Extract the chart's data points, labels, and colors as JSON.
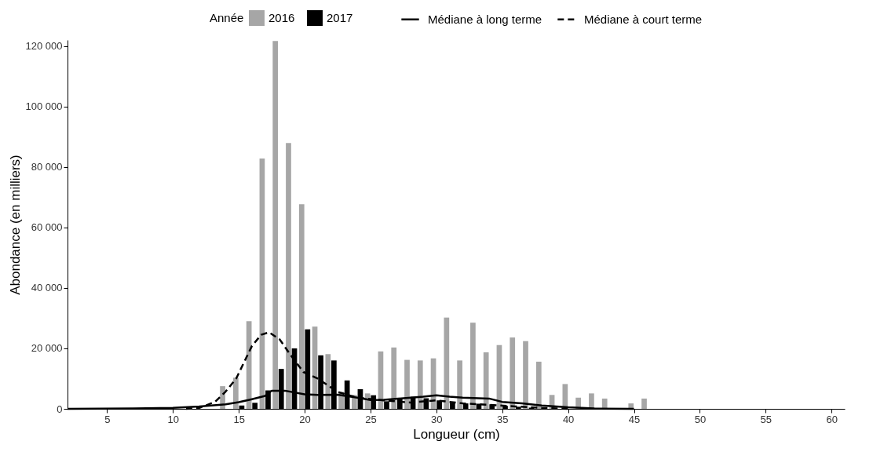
{
  "chart_data": {
    "type": "bar",
    "xlabel": "Longueur (cm)",
    "ylabel": "Abondance (en milliers)",
    "legend_title": "Année",
    "legend": "top",
    "grid": false,
    "xlim": [
      2,
      61
    ],
    "xticks": [
      5,
      10,
      15,
      20,
      25,
      30,
      35,
      40,
      45,
      50,
      55,
      60
    ],
    "ylim": [
      0,
      122000
    ],
    "yticks": [
      {
        "value": 0,
        "label": "0"
      },
      {
        "value": 20000,
        "label": "20 000"
      },
      {
        "value": 40000,
        "label": "40 000"
      },
      {
        "value": 60000,
        "label": "60 000"
      },
      {
        "value": 80000,
        "label": "80 000"
      },
      {
        "value": 100000,
        "label": "100 000"
      },
      {
        "value": 120000,
        "label": "120 000"
      }
    ],
    "series": [
      {
        "name": "2016",
        "color": "#a6a6a6",
        "x": [
          14,
          15,
          16,
          17,
          18,
          19,
          20,
          21,
          22,
          23,
          24,
          25,
          26,
          27,
          28,
          29,
          30,
          31,
          32,
          33,
          34,
          35,
          36,
          37,
          38,
          39,
          40,
          41,
          42,
          43,
          45,
          46
        ],
        "values": [
          7500,
          10300,
          29000,
          82800,
          121700,
          87900,
          67700,
          27200,
          18100,
          5600,
          4600,
          5100,
          19000,
          20300,
          16200,
          16000,
          16700,
          30200,
          16000,
          28500,
          18700,
          21100,
          23600,
          22400,
          15600,
          4600,
          8200,
          3700,
          5100,
          3400,
          1800,
          3400
        ]
      },
      {
        "name": "2017",
        "color": "#000000",
        "x": [
          15,
          16,
          17,
          18,
          19,
          20,
          21,
          22,
          23,
          24,
          25,
          26,
          27,
          28,
          29,
          30,
          31,
          32,
          33,
          34,
          35,
          36,
          37
        ],
        "values": [
          1100,
          2000,
          6100,
          13200,
          20000,
          26300,
          17700,
          16000,
          9400,
          6500,
          4500,
          2500,
          3500,
          4000,
          3500,
          2800,
          2000,
          1800,
          1700,
          1500,
          1000,
          700,
          400
        ]
      },
      {
        "name": "Médiane à long terme",
        "type": "line",
        "color": "#000000",
        "line_style": "solid",
        "x": [
          2,
          7,
          10,
          12,
          14,
          15,
          16,
          17,
          17.5,
          18.5,
          20,
          21,
          22.5,
          24,
          25,
          26,
          27.5,
          29,
          30,
          31,
          32,
          34,
          35,
          36.5,
          38,
          40,
          42,
          45
        ],
        "values": [
          0,
          100,
          300,
          800,
          1500,
          2200,
          3200,
          4300,
          6000,
          6000,
          4800,
          4600,
          4700,
          3700,
          2900,
          3000,
          3500,
          4000,
          4500,
          4000,
          3700,
          3400,
          2300,
          1800,
          1100,
          500,
          100,
          0
        ]
      },
      {
        "name": "Médiane à court terme",
        "type": "line",
        "color": "#000000",
        "line_style": "dashed",
        "x": [
          11,
          12,
          13.2,
          14,
          14.8,
          16,
          16.7,
          17.3,
          18.1,
          18.9,
          19.9,
          21,
          22.5,
          24,
          26,
          28,
          30,
          32,
          34,
          36,
          38,
          40
        ],
        "values": [
          0,
          300,
          2300,
          5700,
          10000,
          20800,
          24500,
          25300,
          23000,
          18000,
          12200,
          10000,
          5600,
          3700,
          2800,
          2100,
          2800,
          1800,
          1300,
          800,
          300,
          0
        ]
      }
    ]
  }
}
